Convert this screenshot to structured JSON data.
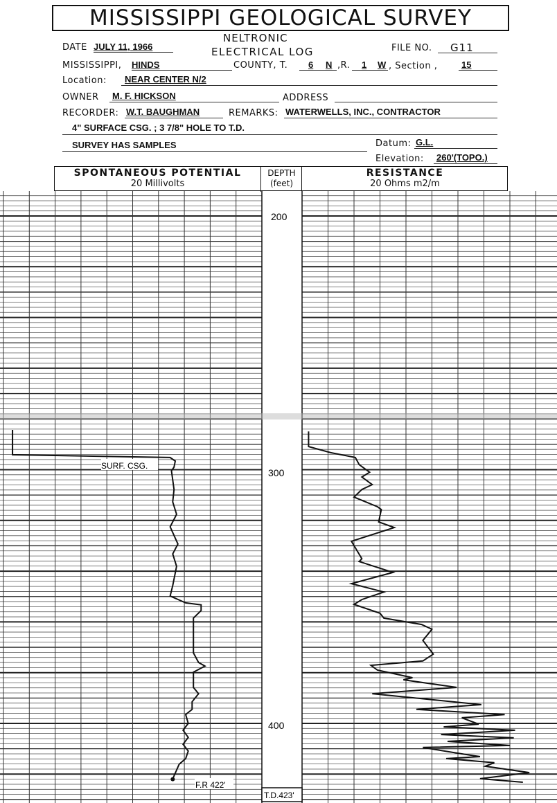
{
  "title": "MISSISSIPPI GEOLOGICAL SURVEY",
  "log_type": {
    "line1": "NELTRONIC",
    "line2": "ELECTRICAL LOG"
  },
  "fields": {
    "date_label": "DATE",
    "date": "JULY 11, 1966",
    "file_no_label": "FILE NO.",
    "file_no": "G11",
    "state_label": "MISSISSIPPI,",
    "county": "HINDS",
    "county_label": "COUNTY, T.",
    "township": "6",
    "township_dir": "N",
    "range_label": ",R.",
    "range": "1",
    "range_dir": "W",
    "section_label": ", Section ,",
    "section": "15",
    "location_label": "Location:",
    "location": "NEAR CENTER N/2",
    "owner_label": "OWNER",
    "owner": "M. F. HICKSON",
    "address_label": "ADDRESS",
    "address": "",
    "recorder_label": "RECORDER:",
    "recorder": "W.T. BAUGHMAN",
    "remarks_label": "REMARKS:",
    "remarks": "WATERWELLS, INC., CONTRACTOR",
    "remarks2": "4\" SURFACE CSG. ; 3 7/8\" HOLE TO T.D.",
    "remarks3": "SURVEY HAS SAMPLES",
    "datum_label": "Datum:",
    "datum": "G.L.",
    "elevation_label": "Elevation:",
    "elevation": "260'(TOPO.)"
  },
  "columns": {
    "sp_title": "SPONTANEOUS POTENTIAL",
    "sp_scale": "20 Millivolts",
    "depth_title": "DEPTH",
    "depth_unit": "(feet)",
    "res_title": "RESISTANCE",
    "res_scale": "20 Ohms m2/m"
  },
  "chart_data": {
    "type": "line",
    "depth_ticks": [
      "200",
      "300",
      "400"
    ],
    "depth_range_ft": [
      190,
      431
    ],
    "annotations": {
      "casing": "SURF. CSG.",
      "fluid": "F.R 422'",
      "total_depth": "T.D.423'"
    },
    "sp_curve": {
      "unit": "mV",
      "range": [
        0,
        20
      ],
      "points": [
        [
          284.3,
          0.7
        ],
        [
          294.1,
          0.7
        ],
        [
          295.2,
          12.9
        ],
        [
          296.6,
          13.3
        ],
        [
          299.0,
          13.2
        ],
        [
          300.4,
          13.0
        ],
        [
          307.8,
          13.2
        ],
        [
          312.7,
          13.1
        ],
        [
          317.6,
          13.4
        ],
        [
          322.5,
          12.9
        ],
        [
          329.3,
          13.5
        ],
        [
          333.2,
          13.1
        ],
        [
          338.1,
          13.4
        ],
        [
          345.7,
          13.1
        ],
        [
          349.8,
          12.9
        ],
        [
          352.5,
          14.1
        ],
        [
          353.3,
          15.3
        ],
        [
          355.5,
          15.3
        ],
        [
          358.5,
          14.7
        ],
        [
          372.2,
          14.7
        ],
        [
          376.0,
          15.1
        ],
        [
          377.4,
          15.6
        ],
        [
          379.8,
          14.7
        ],
        [
          385.8,
          14.7
        ],
        [
          388.3,
          15.1
        ],
        [
          391.5,
          14.6
        ],
        [
          394.5,
          14.6
        ],
        [
          396.5,
          14.1
        ],
        [
          400.0,
          14.3
        ],
        [
          402.7,
          13.9
        ],
        [
          405.5,
          14.3
        ],
        [
          408.2,
          13.9
        ],
        [
          410.9,
          14.3
        ],
        [
          413.9,
          14.1
        ],
        [
          416.1,
          13.6
        ],
        [
          420.7,
          13.2
        ],
        [
          422.0,
          13.1
        ]
      ]
    },
    "resistance_curve": {
      "unit": "ohm m2/m",
      "range": [
        0,
        20
      ],
      "points": [
        [
          284.9,
          0.5
        ],
        [
          290.9,
          0.5
        ],
        [
          293.3,
          2.2
        ],
        [
          295.2,
          4.1
        ],
        [
          298.0,
          4.4
        ],
        [
          301.0,
          5.2
        ],
        [
          302.9,
          4.6
        ],
        [
          305.9,
          5.4
        ],
        [
          307.8,
          4.6
        ],
        [
          310.8,
          4.0
        ],
        [
          314.6,
          5.8
        ],
        [
          315.7,
          6.1
        ],
        [
          320.6,
          5.9
        ],
        [
          322.8,
          7.1
        ],
        [
          328.2,
          3.8
        ],
        [
          335.1,
          4.6
        ],
        [
          336.2,
          4.4
        ],
        [
          340.5,
          7.0
        ],
        [
          344.9,
          3.8
        ],
        [
          348.2,
          6.3
        ],
        [
          351.2,
          4.6
        ],
        [
          353.1,
          4.0
        ],
        [
          356.6,
          6.0
        ],
        [
          358.5,
          6.3
        ],
        [
          361.0,
          9.2
        ],
        [
          362.9,
          10.0
        ],
        [
          367.3,
          9.3
        ],
        [
          372.7,
          10.1
        ],
        [
          375.4,
          9.3
        ],
        [
          377.1,
          5.3
        ],
        [
          379.0,
          5.8
        ],
        [
          382.0,
          8.5
        ],
        [
          382.8,
          7.8
        ],
        [
          385.8,
          11.9
        ],
        [
          388.3,
          5.4
        ],
        [
          392.6,
          13.8
        ],
        [
          394.5,
          8.8
        ],
        [
          396.5,
          15.6
        ],
        [
          397.8,
          12.3
        ],
        [
          400.3,
          13.6
        ],
        [
          401.4,
          10.9
        ],
        [
          402.7,
          16.4
        ],
        [
          404.4,
          10.7
        ],
        [
          405.7,
          16.3
        ],
        [
          407.1,
          11.2
        ],
        [
          408.7,
          16.0
        ],
        [
          409.5,
          9.3
        ],
        [
          412.0,
          12.3
        ],
        [
          413.1,
          13.7
        ],
        [
          413.9,
          11.1
        ],
        [
          415.5,
          14.8
        ],
        [
          416.9,
          14.1
        ],
        [
          419.4,
          17.5
        ],
        [
          421.8,
          13.7
        ],
        [
          423.2,
          17.0
        ]
      ]
    }
  }
}
